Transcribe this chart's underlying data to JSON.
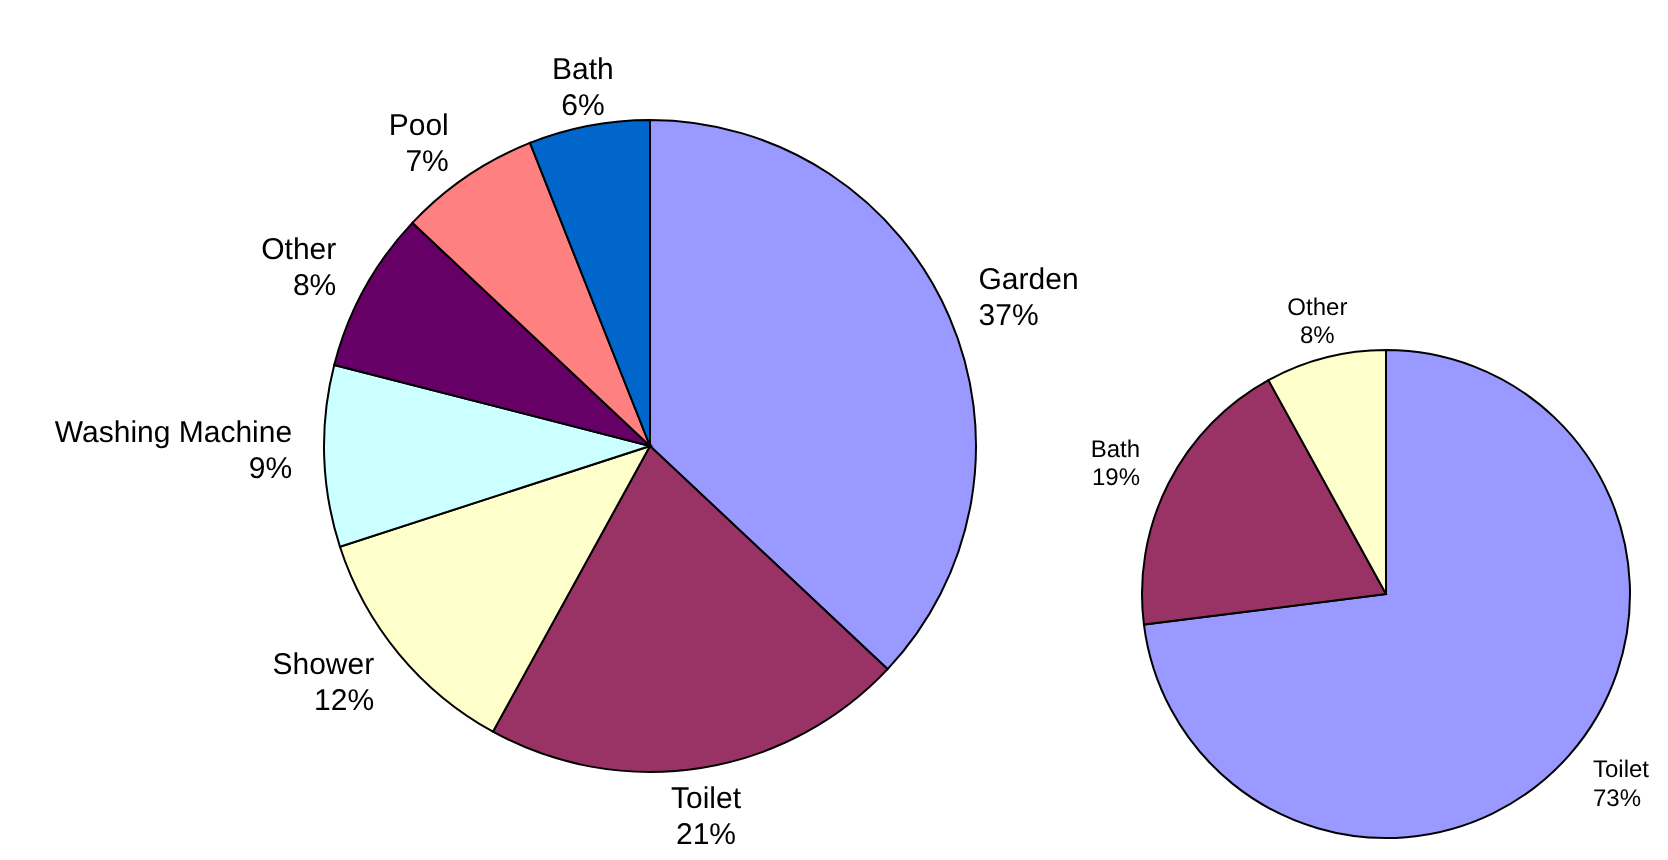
{
  "chart_data": [
    {
      "type": "pie",
      "categories": [
        "Garden",
        "Toilet",
        "Shower",
        "Washing Machine",
        "Other",
        "Pool",
        "Bath"
      ],
      "values": [
        37,
        21,
        12,
        9,
        8,
        7,
        6
      ],
      "value_labels": [
        "37%",
        "21%",
        "12%",
        "9%",
        "8%",
        "7%",
        "6%"
      ],
      "colors": [
        "#9999ff",
        "#993366",
        "#ffffcc",
        "#ccffff",
        "#660066",
        "#ff8080",
        "#0066cc"
      ]
    },
    {
      "type": "pie",
      "categories": [
        "Toilet",
        "Bath",
        "Other"
      ],
      "values": [
        73,
        19,
        8
      ],
      "value_labels": [
        "73%",
        "19%",
        "8%"
      ],
      "colors": [
        "#9999ff",
        "#993366",
        "#ffffcc"
      ]
    }
  ]
}
